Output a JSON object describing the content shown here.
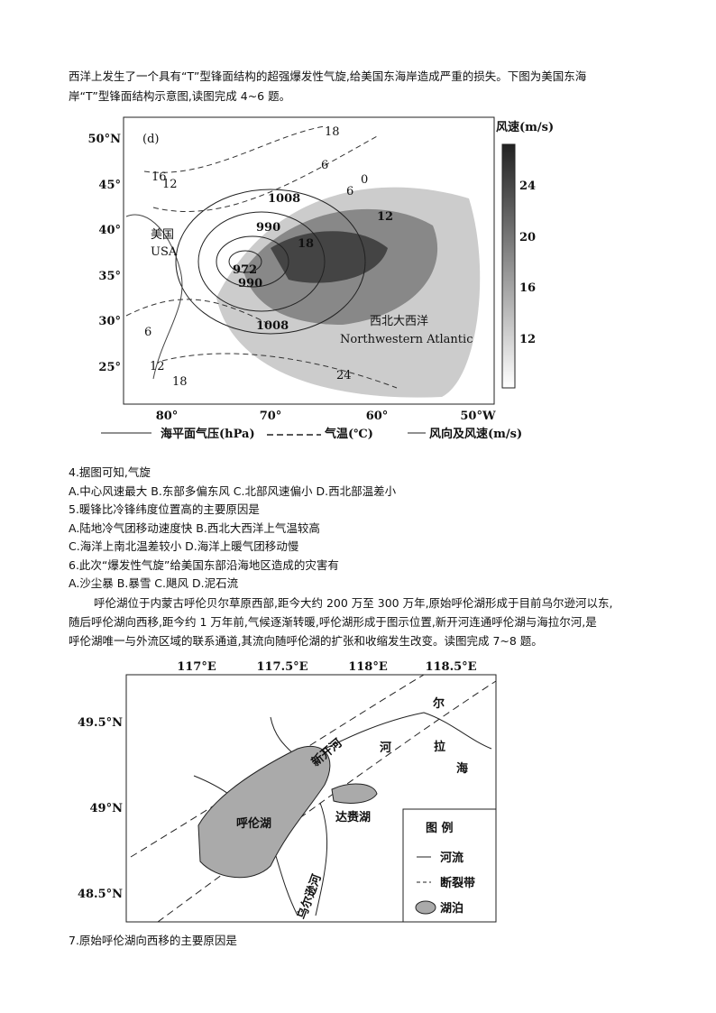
{
  "intro": [
    "西洋上发生了一个具有“T”型锋面结构的超强爆发性气旋,给美国东海岸造成严重的损失。下图为美国东海",
    "岸“T”型锋面结构示意图,读图完成 4~6 题。"
  ],
  "figure1": {
    "lat_labels": [
      "50°N",
      "45°",
      "40°",
      "35°",
      "30°",
      "25°"
    ],
    "lon_labels": [
      "80°",
      "70°",
      "60°",
      "50°W"
    ],
    "colorbar_title": "风速(m/s)",
    "colorbar_labels": [
      "24",
      "20",
      "16",
      "12"
    ],
    "map_labels": [
      "(d)",
      "18",
      "16",
      "12",
      "6",
      "0",
      "6",
      "1008",
      "12",
      "990",
      "美国",
      "USA",
      "18",
      "972",
      "990",
      "1008",
      "西北大西洋",
      "Northwestern Atlantic",
      "6",
      "12",
      "18",
      "24"
    ],
    "legend": [
      "海平面气压(hPa)",
      "气温(℃)",
      "风向及风速(m/s)"
    ]
  },
  "questions": [
    "4.据图可知,气旋",
    "A.中心风速最大 B.东部多偏东风 C.北部风速偏小 D.西北部温差小",
    "5.暖锋比冷锋纬度位置高的主要原因是",
    "A.陆地冷气团移动速度快 B.西北大西洋上气温较高",
    "C.海洋上南北温差较小 D.海洋上暖气团移动慢",
    "6.此次“爆发性气旋”给美国东部沿海地区造成的灾害有",
    "A.沙尘暴 B.暴雪 C.飓风 D.泥石流"
  ],
  "passage": [
    "呼伦湖位于内蒙古呼伦贝尔草原西部,距今大约 200 万至 300 万年,原始呼伦湖形成于目前乌尔逊河以东,",
    "随后呼伦湖向西移,距今约 1 万年前,气候逐渐转暖,呼伦湖形成于图示位置,新开河连通呼伦湖与海拉尔河,是",
    "呼伦湖唯一与外流区域的联系通道,其流向随呼伦湖的扩张和收缩发生改变。读图完成 7~8 题。"
  ],
  "figure2": {
    "lon_labels": [
      "117°E",
      "117.5°E",
      "118°E",
      "118.5°E"
    ],
    "lat_labels": [
      "49.5°N",
      "49°N",
      "48.5°N"
    ],
    "map_labels": [
      "新开河",
      "河",
      "尔",
      "拉",
      "海",
      "呼伦湖",
      "达赉湖",
      "乌尔逊河"
    ],
    "legend_title": "图 例",
    "legend": [
      "河流",
      "断裂带",
      "湖泊"
    ]
  },
  "question7": "7.原始呼伦湖向西移的主要原因是"
}
